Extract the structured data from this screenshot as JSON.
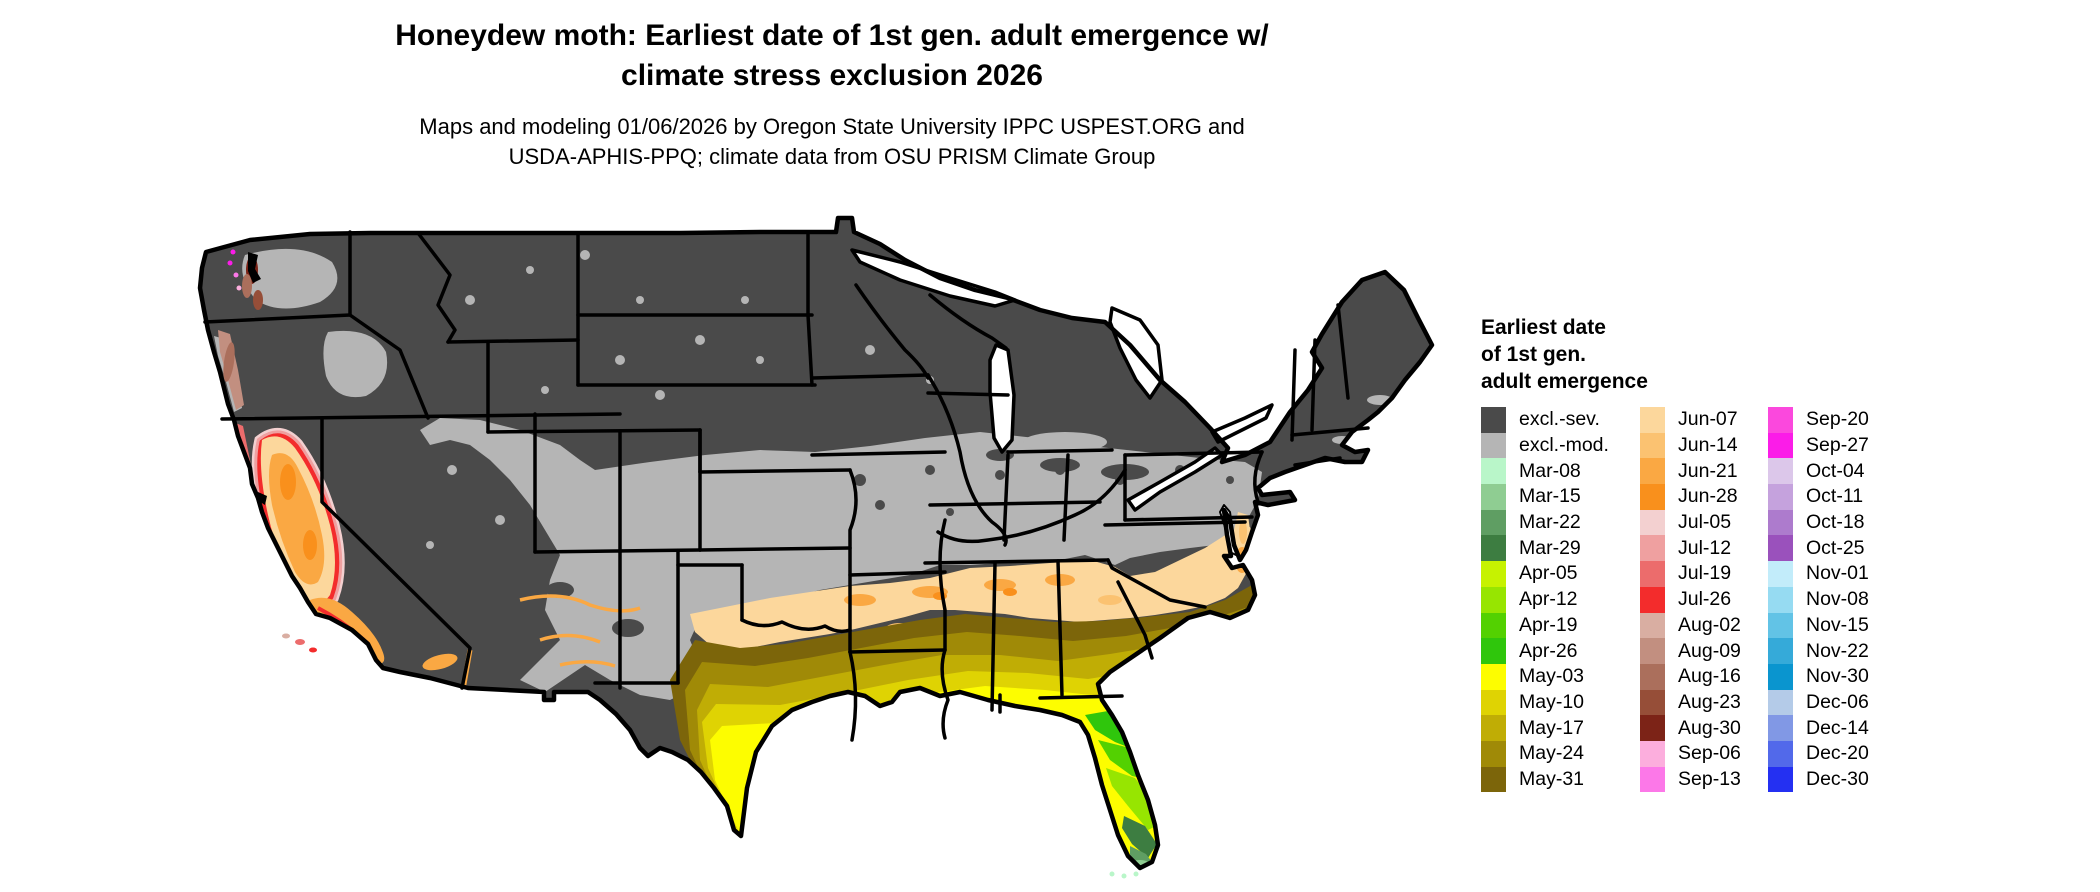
{
  "title": {
    "line1": "Honeydew moth: Earliest date of 1st gen. adult emergence w/",
    "line2": "climate stress exclusion 2026"
  },
  "subtitle": {
    "line1": "Maps and modeling 01/06/2026 by Oregon State University IPPC USPEST.ORG and",
    "line2": "USDA-APHIS-PPQ; climate data from OSU PRISM Climate Group"
  },
  "legend": {
    "title_lines": [
      "Earliest date",
      "of 1st gen.",
      "adult emergence"
    ],
    "columns": [
      {
        "items": [
          {
            "label": "excl.-sev.",
            "color": "#4a4a4a"
          },
          {
            "label": "excl.-mod.",
            "color": "#b5b5b5"
          },
          {
            "label": "Mar-08",
            "color": "#b9f6c9"
          },
          {
            "label": "Mar-15",
            "color": "#8fcd92"
          },
          {
            "label": "Mar-22",
            "color": "#5f9e63"
          },
          {
            "label": "Mar-29",
            "color": "#3d7d41"
          },
          {
            "label": "Apr-05",
            "color": "#c6f201"
          },
          {
            "label": "Apr-12",
            "color": "#97e501"
          },
          {
            "label": "Apr-19",
            "color": "#53d101"
          },
          {
            "label": "Apr-26",
            "color": "#2fc60c"
          },
          {
            "label": "May-03",
            "color": "#fdfd00"
          },
          {
            "label": "May-10",
            "color": "#dfd303"
          },
          {
            "label": "May-17",
            "color": "#c0ad05"
          },
          {
            "label": "May-24",
            "color": "#a08a07"
          },
          {
            "label": "May-31",
            "color": "#7c650a"
          }
        ]
      },
      {
        "items": [
          {
            "label": "Jun-07",
            "color": "#fcd79c"
          },
          {
            "label": "Jun-14",
            "color": "#fbc271"
          },
          {
            "label": "Jun-21",
            "color": "#faa843"
          },
          {
            "label": "Jun-28",
            "color": "#f9901c"
          },
          {
            "label": "Jul-05",
            "color": "#f3d0d0"
          },
          {
            "label": "Jul-12",
            "color": "#efa0a0"
          },
          {
            "label": "Jul-19",
            "color": "#ec6c6c"
          },
          {
            "label": "Jul-26",
            "color": "#f32c2c"
          },
          {
            "label": "Aug-02",
            "color": "#d9aea2"
          },
          {
            "label": "Aug-09",
            "color": "#c28f80"
          },
          {
            "label": "Aug-16",
            "color": "#ab6f5c"
          },
          {
            "label": "Aug-23",
            "color": "#964e38"
          },
          {
            "label": "Aug-30",
            "color": "#7c2317"
          },
          {
            "label": "Sep-06",
            "color": "#fcaedd"
          },
          {
            "label": "Sep-13",
            "color": "#fc78e8"
          }
        ]
      },
      {
        "items": [
          {
            "label": "Sep-20",
            "color": "#fb48dd"
          },
          {
            "label": "Sep-27",
            "color": "#fb1ce8"
          },
          {
            "label": "Oct-04",
            "color": "#dcc7ea"
          },
          {
            "label": "Oct-11",
            "color": "#c5a2dd"
          },
          {
            "label": "Oct-18",
            "color": "#ad7bcd"
          },
          {
            "label": "Oct-25",
            "color": "#9a51bc"
          },
          {
            "label": "Nov-01",
            "color": "#c2ecfa"
          },
          {
            "label": "Nov-08",
            "color": "#96dbf2"
          },
          {
            "label": "Nov-15",
            "color": "#62c3e6"
          },
          {
            "label": "Nov-22",
            "color": "#35aad9"
          },
          {
            "label": "Nov-30",
            "color": "#0a95cf"
          },
          {
            "label": "Dec-06",
            "color": "#b4cbe8"
          },
          {
            "label": "Dec-14",
            "color": "#8198e5"
          },
          {
            "label": "Dec-20",
            "color": "#5269ea"
          },
          {
            "label": "Dec-30",
            "color": "#2430f2"
          }
        ]
      }
    ]
  }
}
